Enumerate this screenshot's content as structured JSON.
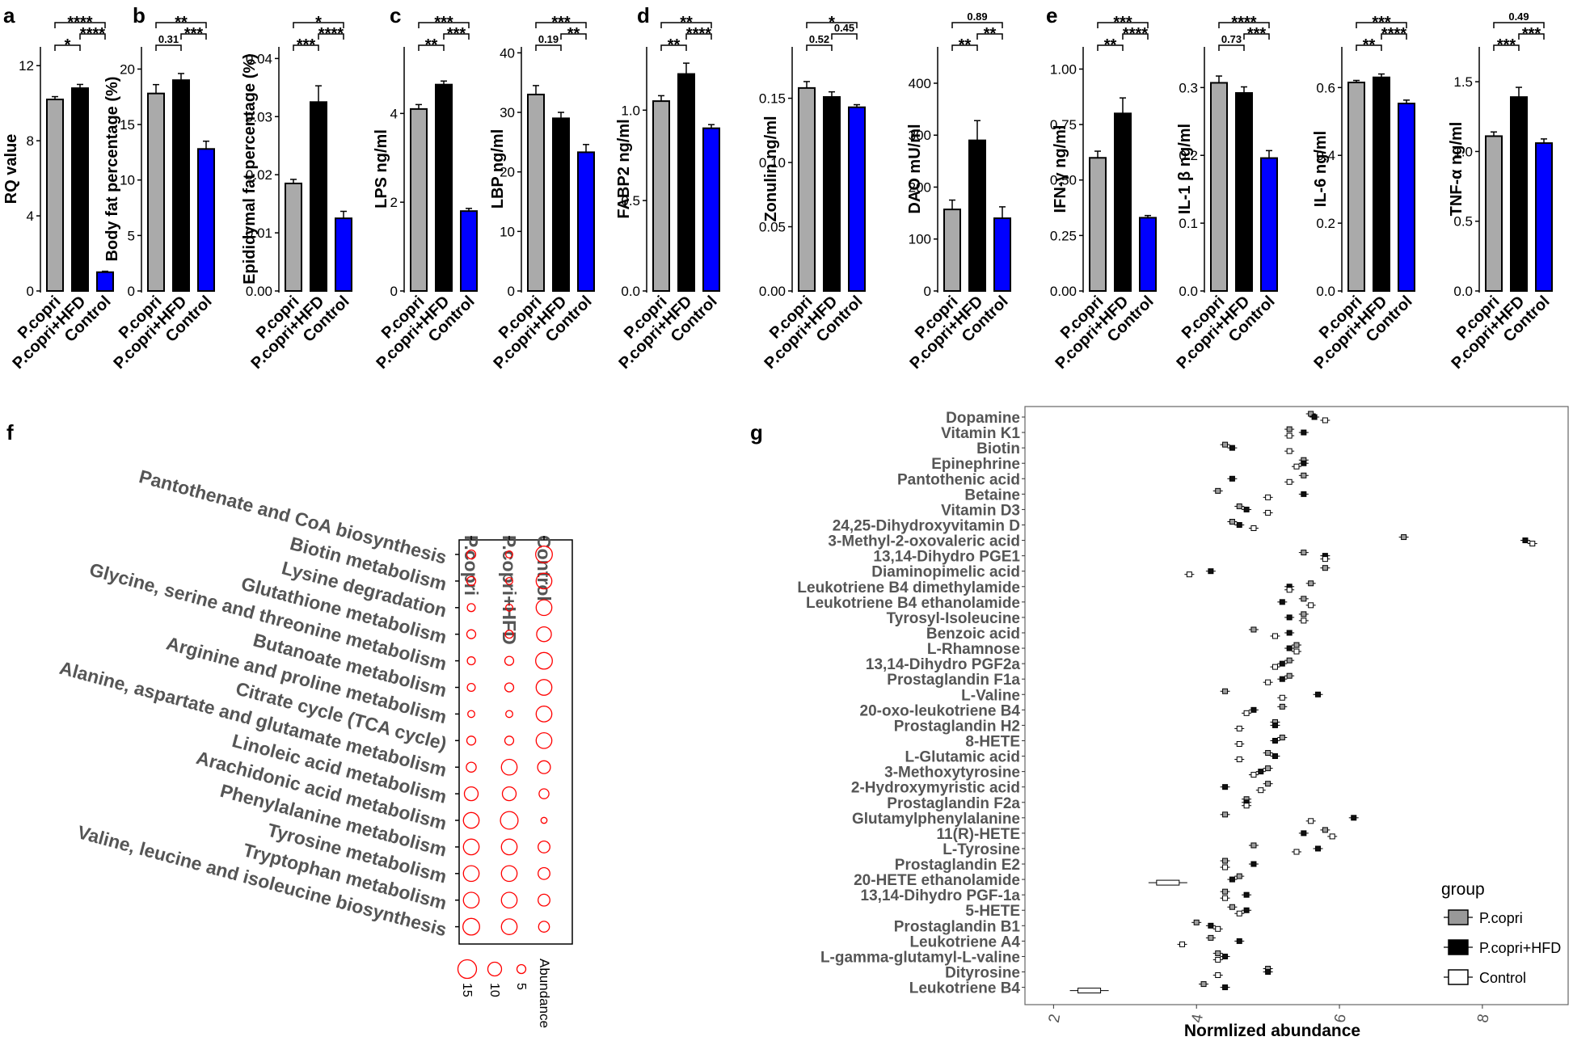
{
  "colors": {
    "pcopri": "#aaaaaa",
    "pcopri_hfd": "#000000",
    "control": "#0000ff",
    "bubble": "#ff0000",
    "axis": "#000000",
    "label_gray": "#555555"
  },
  "panel_letters": [
    "a",
    "b",
    "c",
    "d",
    "e",
    "f",
    "g"
  ],
  "bar_groups": [
    "P.copri",
    "P.copri+HFD",
    "Control"
  ],
  "chart_data": [
    {
      "id": "rq",
      "panel": "a",
      "type": "bar",
      "ylabel": "RQ value",
      "ylim": [
        0,
        13
      ],
      "yticks": [
        "0",
        "4",
        "8",
        "12"
      ],
      "ytick_values": [
        0,
        4,
        8,
        12
      ],
      "categories": [
        "P.copri",
        "P.copri+HFD",
        "Control"
      ],
      "values": [
        10.2,
        10.8,
        1.0
      ],
      "errors": [
        0.15,
        0.2,
        0.05
      ],
      "sig": [
        {
          "a": 0,
          "b": 1,
          "label": "*",
          "lvl": 1
        },
        {
          "a": 1,
          "b": 2,
          "label": "****",
          "lvl": 2
        },
        {
          "a": 0,
          "b": 2,
          "label": "****",
          "lvl": 3
        }
      ]
    },
    {
      "id": "bodyfat",
      "panel": "b",
      "type": "bar",
      "ylabel": "Body fat percentage (%)",
      "ylim": [
        0,
        22
      ],
      "yticks": [
        "0",
        "5",
        "10",
        "15",
        "20"
      ],
      "ytick_values": [
        0,
        5,
        10,
        15,
        20
      ],
      "categories": [
        "P.copri",
        "P.copri+HFD",
        "Control"
      ],
      "values": [
        17.8,
        19.0,
        12.8
      ],
      "errors": [
        0.8,
        0.6,
        0.7
      ],
      "sig": [
        {
          "a": 0,
          "b": 1,
          "label": "0.31",
          "lvl": 1
        },
        {
          "a": 1,
          "b": 2,
          "label": "***",
          "lvl": 2
        },
        {
          "a": 0,
          "b": 2,
          "label": "**",
          "lvl": 3
        }
      ]
    },
    {
      "id": "epifat",
      "panel": "b",
      "type": "bar",
      "ylabel": "Epididymal fat percentage (%)",
      "ylim": [
        0,
        0.042
      ],
      "yticks": [
        "0.00",
        "0.01",
        "0.02",
        "0.03",
        "0.04"
      ],
      "ytick_values": [
        0,
        0.01,
        0.02,
        0.03,
        0.04
      ],
      "categories": [
        "P.copri",
        "P.copri+HFD",
        "Control"
      ],
      "values": [
        0.0185,
        0.0325,
        0.0125
      ],
      "errors": [
        0.0007,
        0.0028,
        0.0012
      ],
      "sig": [
        {
          "a": 0,
          "b": 1,
          "label": "***",
          "lvl": 1
        },
        {
          "a": 1,
          "b": 2,
          "label": "****",
          "lvl": 2
        },
        {
          "a": 0,
          "b": 2,
          "label": "*",
          "lvl": 3
        }
      ]
    },
    {
      "id": "lps",
      "panel": "c",
      "type": "bar",
      "ylabel": "LPS ng/ml",
      "ylim": [
        0,
        5.5
      ],
      "yticks": [
        "0",
        "2",
        "4"
      ],
      "ytick_values": [
        0,
        2,
        4
      ],
      "categories": [
        "P.copri",
        "P.copri+HFD",
        "Control"
      ],
      "values": [
        4.1,
        4.65,
        1.8
      ],
      "errors": [
        0.1,
        0.08,
        0.06
      ],
      "sig": [
        {
          "a": 0,
          "b": 1,
          "label": "**",
          "lvl": 1
        },
        {
          "a": 1,
          "b": 2,
          "label": "***",
          "lvl": 2
        },
        {
          "a": 0,
          "b": 2,
          "label": "***",
          "lvl": 3
        }
      ]
    },
    {
      "id": "lbp",
      "panel": "c",
      "type": "bar",
      "ylabel": "LBP ng/ml",
      "ylim": [
        0,
        41
      ],
      "yticks": [
        "0",
        "10",
        "20",
        "30",
        "40"
      ],
      "ytick_values": [
        0,
        10,
        20,
        30,
        40
      ],
      "categories": [
        "P.copri",
        "P.copri+HFD",
        "Control"
      ],
      "values": [
        33,
        29,
        23.3
      ],
      "errors": [
        1.5,
        1.0,
        1.3
      ],
      "sig": [
        {
          "a": 0,
          "b": 1,
          "label": "0.19",
          "lvl": 1
        },
        {
          "a": 1,
          "b": 2,
          "label": "**",
          "lvl": 2
        },
        {
          "a": 0,
          "b": 2,
          "label": "***",
          "lvl": 3
        }
      ]
    },
    {
      "id": "fabp2",
      "panel": "d",
      "type": "bar",
      "ylabel": "FABP2 ng/ml",
      "ylim": [
        0,
        1.35
      ],
      "yticks": [
        "0.0",
        "0.5",
        "1.0"
      ],
      "ytick_values": [
        0,
        0.5,
        1.0
      ],
      "categories": [
        "P.copri",
        "P.copri+HFD",
        "Control"
      ],
      "values": [
        1.05,
        1.2,
        0.9
      ],
      "errors": [
        0.03,
        0.06,
        0.02
      ],
      "sig": [
        {
          "a": 0,
          "b": 1,
          "label": "**",
          "lvl": 1
        },
        {
          "a": 1,
          "b": 2,
          "label": "****",
          "lvl": 2
        },
        {
          "a": 0,
          "b": 2,
          "label": "**",
          "lvl": 3
        }
      ]
    },
    {
      "id": "zonulin",
      "panel": "d",
      "type": "bar",
      "ylabel": "Zonulin ng/ml",
      "ylim": [
        0,
        0.19
      ],
      "yticks": [
        "0.00",
        "0.05",
        "0.10",
        "0.15"
      ],
      "ytick_values": [
        0,
        0.05,
        0.1,
        0.15
      ],
      "categories": [
        "P.copri",
        "P.copri+HFD",
        "Control"
      ],
      "values": [
        0.158,
        0.151,
        0.143
      ],
      "errors": [
        0.005,
        0.004,
        0.002
      ],
      "sig": [
        {
          "a": 0,
          "b": 1,
          "label": "0.52",
          "lvl": 1
        },
        {
          "a": 1,
          "b": 2,
          "label": "0.45",
          "lvl": 2
        },
        {
          "a": 0,
          "b": 2,
          "label": "*",
          "lvl": 3
        }
      ]
    },
    {
      "id": "dao",
      "panel": "d",
      "type": "bar",
      "ylabel": "DAO mU/ml",
      "ylim": [
        0,
        470
      ],
      "yticks": [
        "0",
        "100",
        "200",
        "300",
        "400"
      ],
      "ytick_values": [
        0,
        100,
        200,
        300,
        400
      ],
      "categories": [
        "P.copri",
        "P.copri+HFD",
        "Control"
      ],
      "values": [
        157,
        290,
        140
      ],
      "errors": [
        18,
        38,
        22
      ],
      "sig": [
        {
          "a": 0,
          "b": 1,
          "label": "**",
          "lvl": 1
        },
        {
          "a": 1,
          "b": 2,
          "label": "**",
          "lvl": 2
        },
        {
          "a": 0,
          "b": 2,
          "label": "0.89",
          "lvl": 3
        }
      ]
    },
    {
      "id": "ifn",
      "panel": "e",
      "type": "bar",
      "ylabel": "IFN-γ ng/ml",
      "ylim": [
        0,
        1.1
      ],
      "yticks": [
        "0.00",
        "0.25",
        "0.50",
        "0.75",
        "1.00"
      ],
      "ytick_values": [
        0,
        0.25,
        0.5,
        0.75,
        1.0
      ],
      "categories": [
        "P.copri",
        "P.copri+HFD",
        "Control"
      ],
      "values": [
        0.6,
        0.8,
        0.33
      ],
      "errors": [
        0.03,
        0.07,
        0.01
      ],
      "sig": [
        {
          "a": 0,
          "b": 1,
          "label": "**",
          "lvl": 1
        },
        {
          "a": 1,
          "b": 2,
          "label": "****",
          "lvl": 2
        },
        {
          "a": 0,
          "b": 2,
          "label": "***",
          "lvl": 3
        }
      ]
    },
    {
      "id": "il1b",
      "panel": "e",
      "type": "bar",
      "ylabel": "IL-1 β ng/ml",
      "ylim": [
        0,
        0.36
      ],
      "yticks": [
        "0.0",
        "0.1",
        "0.2",
        "0.3"
      ],
      "ytick_values": [
        0,
        0.1,
        0.2,
        0.3
      ],
      "categories": [
        "P.copri",
        "P.copri+HFD",
        "Control"
      ],
      "values": [
        0.307,
        0.292,
        0.196
      ],
      "errors": [
        0.01,
        0.009,
        0.011
      ],
      "sig": [
        {
          "a": 0,
          "b": 1,
          "label": "0.73",
          "lvl": 1
        },
        {
          "a": 1,
          "b": 2,
          "label": "***",
          "lvl": 2
        },
        {
          "a": 0,
          "b": 2,
          "label": "****",
          "lvl": 3
        }
      ]
    },
    {
      "id": "il6",
      "panel": "e",
      "type": "bar",
      "ylabel": "IL-6 ng/ml",
      "ylim": [
        0,
        0.72
      ],
      "yticks": [
        "0.0",
        "0.2",
        "0.4",
        "0.6"
      ],
      "ytick_values": [
        0,
        0.2,
        0.4,
        0.6
      ],
      "categories": [
        "P.copri",
        "P.copri+HFD",
        "Control"
      ],
      "values": [
        0.615,
        0.63,
        0.553
      ],
      "errors": [
        0.006,
        0.01,
        0.01
      ],
      "sig": [
        {
          "a": 0,
          "b": 1,
          "label": "**",
          "lvl": 1
        },
        {
          "a": 1,
          "b": 2,
          "label": "****",
          "lvl": 2
        },
        {
          "a": 0,
          "b": 2,
          "label": "***",
          "lvl": 3
        }
      ]
    },
    {
      "id": "tnf",
      "panel": "e",
      "type": "bar",
      "ylabel": "TNF-α ng/ml",
      "ylim": [
        0,
        1.75
      ],
      "yticks": [
        "0.0",
        "0.5",
        "1.0",
        "1.5"
      ],
      "ytick_values": [
        0,
        0.5,
        1.0,
        1.5
      ],
      "categories": [
        "P.copri",
        "P.copri+HFD",
        "Control"
      ],
      "values": [
        1.11,
        1.39,
        1.06
      ],
      "errors": [
        0.03,
        0.07,
        0.03
      ],
      "sig": [
        {
          "a": 0,
          "b": 1,
          "label": "***",
          "lvl": 1
        },
        {
          "a": 1,
          "b": 2,
          "label": "***",
          "lvl": 2
        },
        {
          "a": 0,
          "b": 2,
          "label": "0.49",
          "lvl": 3
        }
      ]
    },
    {
      "id": "pathways",
      "panel": "f",
      "type": "scatter",
      "subtype": "bubble",
      "columns": [
        "P.copri",
        "P.copri+HFD",
        "Control"
      ],
      "rows": [
        "Pantothenate and CoA biosynthesis",
        "Biotin metabolism",
        "Lysine degradation",
        "Glutathione metabolism",
        "Glycine, serine and threonine metabolism",
        "Butanoate metabolism",
        "Arginine and proline metabolism",
        "Citrate cycle (TCA cycle)",
        "Alanine, aspartate and glutamate metabolism",
        "Linoleic acid metabolism",
        "Arachidonic acid metabolism",
        "Phenylalanine metabolism",
        "Tyrosine metabolism",
        "Tryptophan metabolism",
        "Valine, leucine and isoleucine biosynthesis"
      ],
      "values": [
        [
          5,
          3,
          13
        ],
        [
          5,
          3,
          12
        ],
        [
          4,
          3,
          12
        ],
        [
          5,
          4,
          11
        ],
        [
          4,
          5,
          13
        ],
        [
          4,
          5,
          12
        ],
        [
          3,
          3,
          12
        ],
        [
          5,
          5,
          12
        ],
        [
          6,
          12,
          9
        ],
        [
          10,
          10,
          6
        ],
        [
          12,
          14,
          2
        ],
        [
          12,
          12,
          8
        ],
        [
          12,
          12,
          8
        ],
        [
          12,
          12,
          8
        ],
        [
          13,
          12,
          7
        ]
      ],
      "legend_title": "Abundance",
      "legend_values": [
        15,
        10,
        5
      ],
      "legend_labels": [
        "15",
        "10",
        "5"
      ]
    },
    {
      "id": "metabolites",
      "panel": "g",
      "type": "scatter",
      "subtype": "boxplot",
      "xlabel": "Normlized abundance",
      "xlim": [
        1.6,
        9.2
      ],
      "xticks": [
        "2",
        "4",
        "6",
        "8"
      ],
      "xtick_values": [
        2,
        4,
        6,
        8
      ],
      "legend_title": "group",
      "legend_labels": [
        "P.copri",
        "P.copri+HFD",
        "Control"
      ],
      "metabolites": [
        "Dopamine",
        "Vitamin K1",
        "Biotin",
        "Epinephrine",
        "Pantothenic acid",
        "Betaine",
        "Vitamin D3",
        "24,25-Dihydroxyvitamin D",
        "3-Methyl-2-oxovaleric acid",
        "13,14-Dihydro PGE1",
        "Diaminopimelic acid",
        "Leukotriene B4 dimethylamide",
        "Leukotriene B4 ethanolamide",
        "Tyrosyl-Isoleucine",
        "Benzoic acid",
        "L-Rhamnose",
        "13,14-Dihydro PGF2a",
        "Prostaglandin F1a",
        "L-Valine",
        "20-oxo-leukotriene B4",
        "Prostaglandin H2",
        "8-HETE",
        "L-Glutamic acid",
        "3-Methoxytyrosine",
        "2-Hydroxymyristic acid",
        "Prostaglandin F2a",
        "Glutamylphenylalanine",
        "11(R)-HETE",
        "L-Tyrosine",
        "Prostaglandin E2",
        "20-HETE ethanolamide",
        "13,14-Dihydro PGF-1a",
        "5-HETE",
        "Prostaglandin B1",
        "Leukotriene A4",
        "L-gamma-glutamyl-L-valine",
        "Dityrosine",
        "Leukotriene B4"
      ],
      "medians": [
        [
          5.6,
          5.65,
          5.8
        ],
        [
          5.3,
          5.5,
          5.3
        ],
        [
          4.4,
          4.5,
          5.3
        ],
        [
          5.5,
          5.5,
          5.4
        ],
        [
          5.5,
          4.5,
          5.3
        ],
        [
          4.3,
          5.5,
          5.0
        ],
        [
          4.6,
          4.7,
          5.0
        ],
        [
          4.5,
          4.6,
          4.8
        ],
        [
          6.9,
          8.6,
          8.7
        ],
        [
          5.5,
          5.8,
          5.8
        ],
        [
          5.8,
          4.2,
          3.9
        ],
        [
          5.6,
          5.3,
          5.3
        ],
        [
          5.5,
          5.2,
          5.6
        ],
        [
          5.5,
          5.3,
          5.5
        ],
        [
          4.8,
          5.3,
          5.1
        ],
        [
          5.4,
          5.3,
          5.4
        ],
        [
          5.3,
          5.2,
          5.1
        ],
        [
          5.3,
          5.2,
          5.0
        ],
        [
          4.4,
          5.7,
          5.2
        ],
        [
          5.2,
          4.8,
          4.7
        ],
        [
          5.1,
          5.1,
          4.6
        ],
        [
          5.2,
          5.1,
          4.6
        ],
        [
          5.0,
          5.1,
          4.6
        ],
        [
          5.0,
          4.9,
          4.8
        ],
        [
          5.0,
          4.4,
          4.9
        ],
        [
          4.7,
          4.7,
          4.7
        ],
        [
          4.4,
          6.2,
          5.6
        ],
        [
          5.8,
          5.5,
          5.9
        ],
        [
          4.8,
          5.7,
          5.4
        ],
        [
          4.4,
          4.8,
          4.4
        ],
        [
          4.6,
          4.5,
          3.6
        ],
        [
          4.4,
          4.7,
          4.4
        ],
        [
          4.5,
          4.7,
          4.6
        ],
        [
          4.0,
          4.2,
          4.3
        ],
        [
          4.2,
          4.6,
          3.8
        ],
        [
          4.3,
          4.4,
          4.3
        ],
        [
          5.0,
          5.0,
          4.3
        ],
        [
          4.1,
          4.4,
          2.5
        ]
      ]
    }
  ]
}
